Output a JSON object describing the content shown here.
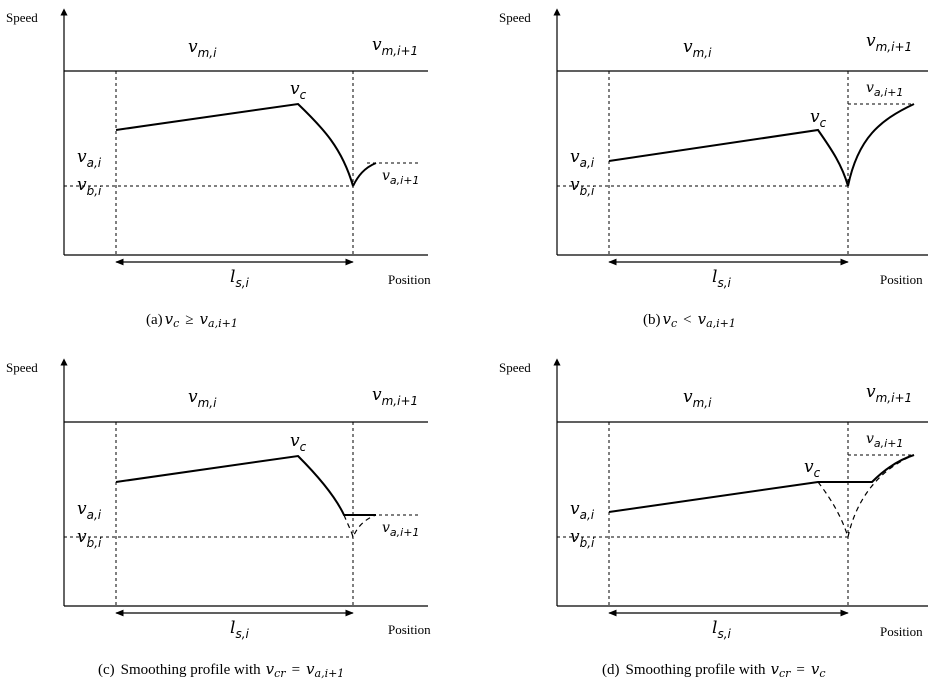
{
  "axis": {
    "y_label": "Speed",
    "x_label": "Position"
  },
  "labels": {
    "v_m_i": {
      "base": "v",
      "sub": "m,i"
    },
    "v_m_i1": {
      "base": "v",
      "sub": "m,i+1"
    },
    "v_c": {
      "base": "v",
      "sub": "c"
    },
    "v_a_i": {
      "base": "v",
      "sub": "a,i"
    },
    "v_b_i": {
      "base": "v",
      "sub": "b,i"
    },
    "v_a_i1": {
      "base": "v",
      "sub": "a,i+1"
    },
    "l_s_i": {
      "base": "l",
      "sub": "s,i"
    }
  },
  "panels": [
    {
      "id": "a",
      "caption_prefix": "(a)",
      "caption_lhs": "v",
      "caption_lhs_sub": "c",
      "caption_op": "≥",
      "caption_rhs": "v",
      "caption_rhs_sub": "a,i+1",
      "caption_text": ""
    },
    {
      "id": "b",
      "caption_prefix": "(b)",
      "caption_lhs": "v",
      "caption_lhs_sub": "c",
      "caption_op": "<",
      "caption_rhs": "v",
      "caption_rhs_sub": "a,i+1",
      "caption_text": ""
    },
    {
      "id": "c",
      "caption_prefix": "(c)",
      "caption_text": "Smoothing profile with",
      "caption_lhs": "v",
      "caption_lhs_sub": "cr",
      "caption_op": "=",
      "caption_rhs": "v",
      "caption_rhs_sub": "a,i+1"
    },
    {
      "id": "d",
      "caption_prefix": "(d)",
      "caption_text": "Smoothing profile with",
      "caption_lhs": "v",
      "caption_lhs_sub": "cr",
      "caption_op": "=",
      "caption_rhs": "v",
      "caption_rhs_sub": "c"
    }
  ]
}
